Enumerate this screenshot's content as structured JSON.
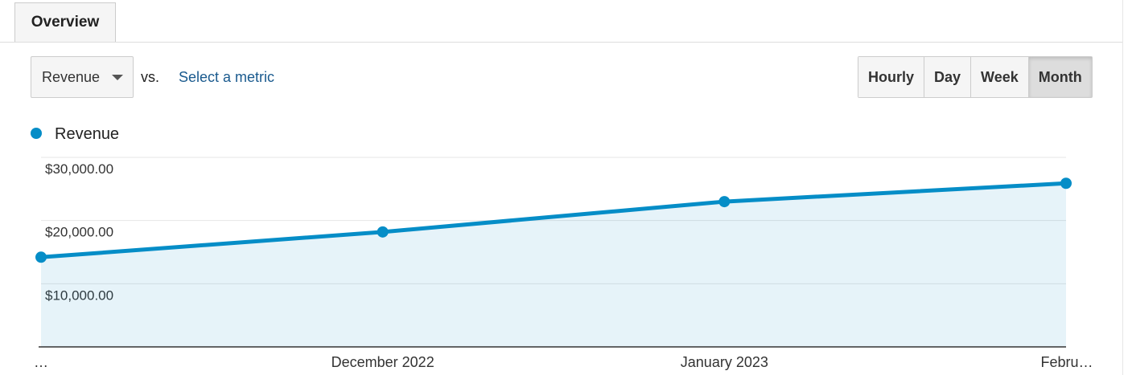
{
  "tabs": [
    "Overview"
  ],
  "controls": {
    "metric": "Revenue",
    "vs": "vs.",
    "compare": "Select a metric",
    "intervals": [
      "Hourly",
      "Day",
      "Week",
      "Month"
    ]
  },
  "chart_data": {
    "type": "line",
    "categories": [
      "…",
      "December 2022",
      "January 2023",
      "Febru…"
    ],
    "series": [
      {
        "name": "Revenue",
        "color": "#058dc7",
        "values": [
          14200,
          18200,
          23000,
          25900
        ]
      }
    ],
    "ylim": [
      0,
      30000
    ],
    "yticks": [
      {
        "value": 10000,
        "label": "$10,000.00"
      },
      {
        "value": 20000,
        "label": "$20,000.00"
      },
      {
        "value": 30000,
        "label": "$30,000.00"
      }
    ],
    "grid": true
  }
}
